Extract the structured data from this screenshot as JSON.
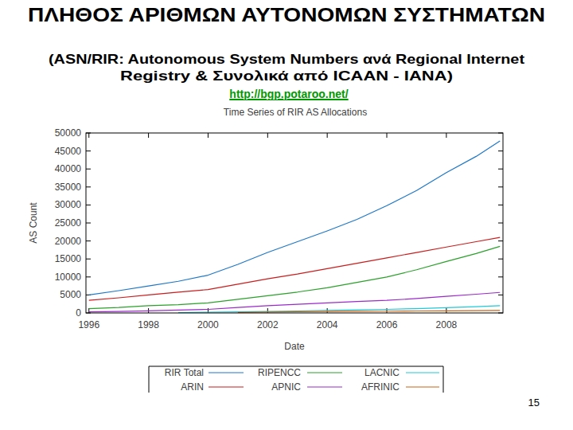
{
  "slide": {
    "title": "ΠΛΗΘΟΣ ΑΡΙΘΜΩΝ ΑΥΤΟΝΟΜΩΝ ΣΥΣΤΗΜΑΤΩΝ",
    "subtitle": [
      "(ASN/RIR: Autonomous System Numbers ανά Regional Internet",
      "Registry & Συνολικά από ICAAN - IANA)"
    ],
    "link": "http://bgp.potaroo.net/",
    "page_number": 15
  },
  "chart_data": {
    "type": "line",
    "title": "Time Series of RIR AS Allocations",
    "x_label": "Date",
    "y_label": "AS Count",
    "x": [
      1996,
      1997,
      1998,
      1999,
      2000,
      2001,
      2002,
      2003,
      2004,
      2005,
      2006,
      2007,
      2008,
      2009,
      2009.8
    ],
    "series": [
      {
        "name": "RIR Total",
        "color": "#1f77c8",
        "values": [
          5000,
          6200,
          7500,
          8800,
          10500,
          13500,
          16800,
          19800,
          22800,
          26000,
          29800,
          34000,
          39000,
          43500,
          47800
        ]
      },
      {
        "name": "ARIN",
        "color": "#c81e1e",
        "values": [
          3500,
          4200,
          5000,
          5800,
          6500,
          8000,
          9500,
          10800,
          12300,
          13800,
          15300,
          16800,
          18300,
          19800,
          21000
        ]
      },
      {
        "name": "RIPENCC",
        "color": "#2ca02c",
        "values": [
          1200,
          1500,
          2000,
          2300,
          2800,
          3800,
          4800,
          5800,
          7000,
          8500,
          10000,
          12000,
          14300,
          16500,
          18500
        ]
      },
      {
        "name": "APNIC",
        "color": "#9a2bc8",
        "values": [
          300,
          400,
          600,
          800,
          1000,
          1500,
          2000,
          2400,
          2800,
          3200,
          3500,
          4000,
          4600,
          5200,
          5700
        ]
      },
      {
        "name": "LACNIC",
        "color": "#20c8d8",
        "values": [
          null,
          null,
          null,
          100,
          200,
          300,
          400,
          550,
          700,
          850,
          1000,
          1200,
          1450,
          1750,
          2000
        ]
      },
      {
        "name": "AFRINIC",
        "color": "#c86414",
        "values": [
          null,
          null,
          null,
          null,
          null,
          150,
          250,
          350,
          400,
          450,
          500,
          550,
          600,
          650,
          700
        ]
      }
    ],
    "xlim": [
      1995.9,
      2009.9
    ],
    "ylim": [
      0,
      50000
    ],
    "xticks": [
      1996,
      1998,
      2000,
      2002,
      2004,
      2006,
      2008
    ],
    "yticks": [
      0,
      5000,
      10000,
      15000,
      20000,
      25000,
      30000,
      35000,
      40000,
      45000,
      50000
    ],
    "grid": false,
    "legend": "bottom"
  }
}
